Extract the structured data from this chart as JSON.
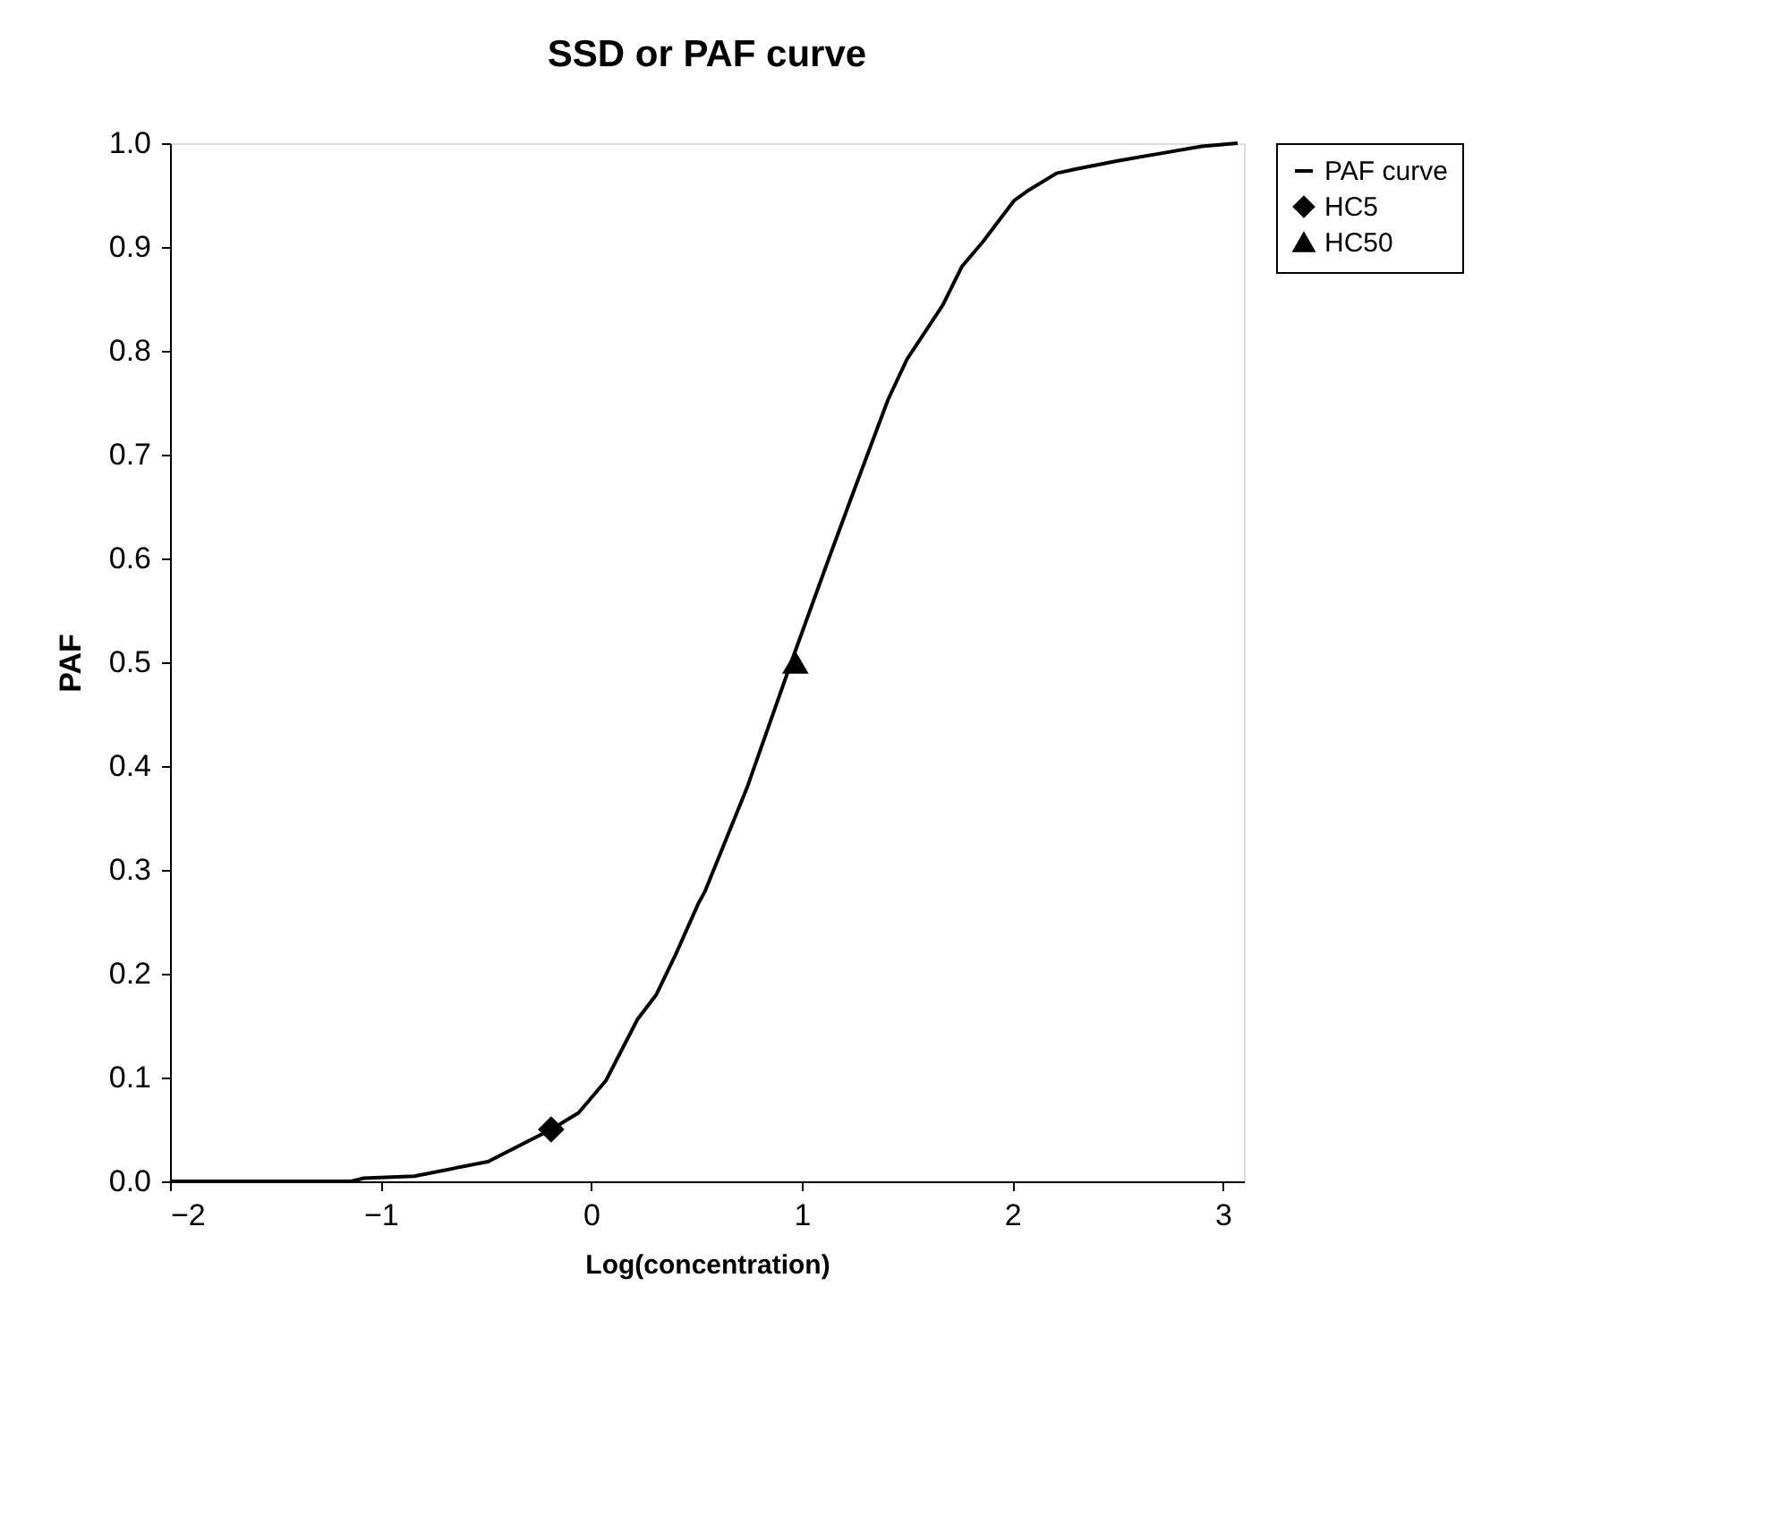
{
  "chart_data": {
    "type": "line",
    "title": "SSD or PAF curve",
    "xlabel": "Log(concentration)",
    "ylabel": "PAF",
    "xlim": [
      -2,
      3.1
    ],
    "xticks": [
      -2,
      -1,
      0,
      1,
      2,
      3
    ],
    "ylim": [
      0,
      1
    ],
    "yticks": [
      {
        "value": 0,
        "label": "0.0"
      },
      0.1,
      0.2,
      0.3,
      0.4,
      0.5,
      0.6,
      0.7,
      0.8,
      0.9,
      {
        "value": 1,
        "label": "1.0"
      }
    ],
    "grid": false,
    "legend": "right",
    "series": [
      {
        "name": "PAF curve",
        "color": "#000000",
        "marker": "none",
        "line_style": "solid",
        "x": [
          -2,
          -1.14,
          -1.08,
          -0.84,
          -0.49,
          -0.19,
          -0.06,
          0.07,
          0.22,
          0.31,
          0.4,
          0.51,
          0.54,
          0.74,
          0.95,
          1.12,
          1.24,
          1.41,
          1.5,
          1.67,
          1.76,
          1.86,
          2.01,
          2.08,
          2.21,
          2.3,
          2.5,
          2.7,
          2.9,
          3.07
        ],
        "values": [
          0,
          0,
          0.003,
          0.005,
          0.019,
          0.05,
          0.066,
          0.097,
          0.156,
          0.18,
          0.218,
          0.268,
          0.279,
          0.379,
          0.5,
          0.595,
          0.661,
          0.753,
          0.792,
          0.844,
          0.881,
          0.905,
          0.945,
          0.955,
          0.971,
          0.975,
          0.983,
          0.99,
          0.997,
          1.0
        ]
      },
      {
        "name": "HC5",
        "type": "scatter",
        "color": "#000000",
        "marker": "diamond",
        "x": [
          -0.19
        ],
        "values": [
          0.05
        ]
      },
      {
        "name": "HC50",
        "type": "scatter",
        "color": "#000000",
        "marker": "triangle",
        "x": [
          0.97
        ],
        "values": [
          0.5
        ]
      }
    ]
  }
}
